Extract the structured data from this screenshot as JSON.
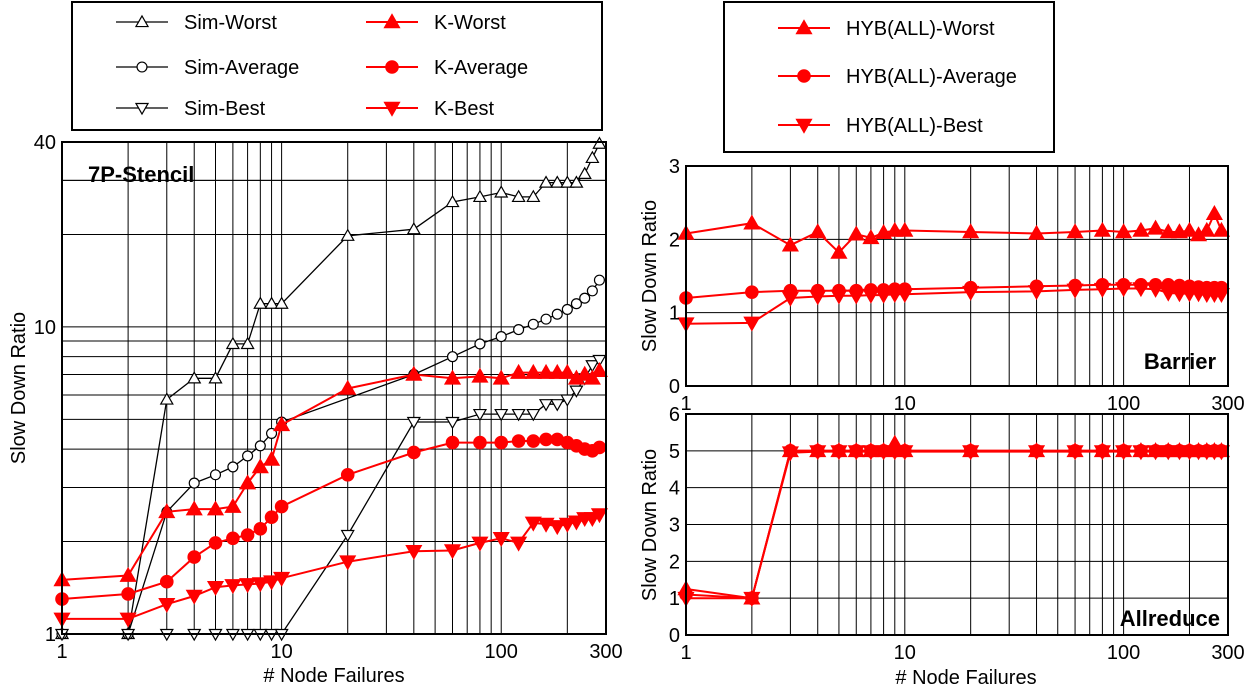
{
  "colors": {
    "sim": "#000000",
    "k": "#ff0000",
    "hyb": "#ff0000"
  },
  "chart_data": [
    {
      "type": "line",
      "annotation": "7P-Stencil",
      "xlabel": "# Node Failures",
      "ylabel": "Slow Down Ratio",
      "xscale": "log",
      "yscale": "log",
      "xlim": [
        1,
        300
      ],
      "ylim": [
        1,
        40
      ],
      "x_ticks": [
        {
          "v": 1,
          "t": "1"
        },
        {
          "v": 10,
          "t": "10"
        },
        {
          "v": 100,
          "t": "100"
        },
        {
          "v": 300,
          "t": "300"
        }
      ],
      "y_ticks": [
        {
          "v": 1,
          "t": "1"
        },
        {
          "v": 10,
          "t": "10"
        },
        {
          "v": 40,
          "t": "40"
        }
      ],
      "grid": true,
      "legend_position": "top",
      "series": [
        {
          "name": "Sim-Worst",
          "style": "sim",
          "marker": "tri-up",
          "filled": false,
          "x": [
            1,
            2,
            3,
            4,
            5,
            6,
            7,
            8,
            9,
            10,
            20,
            40,
            60,
            80,
            100,
            120,
            140,
            160,
            180,
            200,
            220,
            240,
            260,
            280
          ],
          "y": [
            1,
            1,
            5.8,
            6.8,
            6.8,
            8.8,
            8.8,
            11.9,
            11.9,
            11.9,
            19.8,
            20.8,
            25.5,
            26.5,
            27.4,
            26.5,
            26.5,
            29.5,
            29.5,
            29.5,
            29.5,
            31.5,
            35.5,
            39.5
          ]
        },
        {
          "name": "Sim-Average",
          "style": "sim",
          "marker": "circle",
          "filled": false,
          "x": [
            1,
            2,
            3,
            4,
            5,
            6,
            7,
            8,
            9,
            10,
            40,
            60,
            80,
            100,
            120,
            140,
            160,
            180,
            200,
            220,
            240,
            260,
            280
          ],
          "y": [
            1,
            1,
            2.5,
            3.1,
            3.3,
            3.5,
            3.8,
            4.1,
            4.5,
            4.9,
            7,
            8,
            8.8,
            9.3,
            9.8,
            10.2,
            10.6,
            11,
            11.4,
            11.9,
            12.4,
            13.1,
            14.2
          ]
        },
        {
          "name": "Sim-Best",
          "style": "sim",
          "marker": "tri-down",
          "filled": false,
          "x": [
            1,
            2,
            3,
            4,
            5,
            6,
            7,
            8,
            9,
            10,
            20,
            40,
            60,
            80,
            100,
            120,
            140,
            160,
            180,
            200,
            220,
            240,
            260,
            280
          ],
          "y": [
            1,
            1,
            1,
            1,
            1,
            1,
            1,
            1,
            1,
            1,
            2.1,
            4.9,
            4.9,
            5.2,
            5.2,
            5.2,
            5.2,
            5.6,
            5.6,
            5.8,
            6.2,
            6.8,
            7.5,
            7.8
          ]
        },
        {
          "name": "K-Worst",
          "style": "k",
          "marker": "tri-up",
          "filled": true,
          "x": [
            1,
            2,
            3,
            4,
            5,
            6,
            7,
            8,
            9,
            10,
            20,
            40,
            60,
            80,
            100,
            120,
            140,
            160,
            180,
            200,
            220,
            240,
            260,
            280
          ],
          "y": [
            1.5,
            1.55,
            2.5,
            2.55,
            2.55,
            2.6,
            3.1,
            3.5,
            3.7,
            4.8,
            6.3,
            7,
            6.8,
            6.9,
            6.8,
            7.1,
            7.1,
            7.1,
            7.1,
            7.1,
            6.8,
            7,
            6.8,
            7.2
          ]
        },
        {
          "name": "K-Average",
          "style": "k",
          "marker": "circle",
          "filled": true,
          "x": [
            1,
            2,
            3,
            4,
            5,
            6,
            7,
            8,
            9,
            10,
            20,
            40,
            60,
            80,
            100,
            120,
            140,
            160,
            180,
            200,
            220,
            240,
            260,
            280
          ],
          "y": [
            1.3,
            1.35,
            1.48,
            1.78,
            1.98,
            2.05,
            2.1,
            2.2,
            2.4,
            2.6,
            3.3,
            3.9,
            4.2,
            4.2,
            4.2,
            4.25,
            4.25,
            4.3,
            4.3,
            4.2,
            4.1,
            4.0,
            3.95,
            4.05
          ]
        },
        {
          "name": "K-Best",
          "style": "k",
          "marker": "tri-down",
          "filled": true,
          "x": [
            1,
            2,
            3,
            4,
            5,
            6,
            7,
            8,
            9,
            10,
            20,
            40,
            60,
            80,
            100,
            120,
            140,
            160,
            180,
            200,
            220,
            240,
            260,
            280
          ],
          "y": [
            1.12,
            1.12,
            1.25,
            1.33,
            1.42,
            1.44,
            1.45,
            1.46,
            1.48,
            1.52,
            1.72,
            1.86,
            1.87,
            1.98,
            2.05,
            1.98,
            2.3,
            2.28,
            2.24,
            2.28,
            2.32,
            2.38,
            2.38,
            2.45
          ]
        }
      ]
    },
    {
      "type": "line",
      "annotation": "Barrier",
      "ylabel": "Slow Down Ratio",
      "xscale": "log",
      "yscale": "linear",
      "xlim": [
        1,
        300
      ],
      "ylim": [
        0,
        3
      ],
      "x_ticks": [
        {
          "v": 1,
          "t": "1"
        },
        {
          "v": 10,
          "t": "10"
        },
        {
          "v": 100,
          "t": "100"
        },
        {
          "v": 300,
          "t": "300"
        }
      ],
      "y_ticks": [
        {
          "v": 0,
          "t": "0"
        },
        {
          "v": 1,
          "t": "1"
        },
        {
          "v": 2,
          "t": "2"
        },
        {
          "v": 3,
          "t": "3"
        }
      ],
      "grid": true,
      "legend_position": "top",
      "series": [
        {
          "name": "HYB(ALL)-Worst",
          "style": "hyb",
          "marker": "tri-up",
          "filled": true,
          "x": [
            1,
            2,
            3,
            4,
            5,
            6,
            7,
            8,
            9,
            10,
            20,
            40,
            60,
            80,
            100,
            120,
            140,
            160,
            180,
            200,
            220,
            240,
            260,
            280
          ],
          "y": [
            2.08,
            2.22,
            1.92,
            2.1,
            1.82,
            2.07,
            2.02,
            2.09,
            2.12,
            2.12,
            2.1,
            2.08,
            2.1,
            2.12,
            2.1,
            2.12,
            2.15,
            2.1,
            2.1,
            2.12,
            2.06,
            2.12,
            2.35,
            2.12
          ]
        },
        {
          "name": "HYB(ALL)-Average",
          "style": "hyb",
          "marker": "circle",
          "filled": true,
          "x": [
            1,
            2,
            3,
            4,
            5,
            6,
            7,
            8,
            9,
            10,
            20,
            40,
            60,
            80,
            100,
            120,
            140,
            160,
            180,
            200,
            220,
            240,
            260,
            280
          ],
          "y": [
            1.2,
            1.28,
            1.3,
            1.3,
            1.3,
            1.3,
            1.31,
            1.31,
            1.32,
            1.32,
            1.34,
            1.36,
            1.37,
            1.38,
            1.38,
            1.38,
            1.38,
            1.38,
            1.37,
            1.36,
            1.35,
            1.34,
            1.34,
            1.34
          ]
        },
        {
          "name": "HYB(ALL)-Best",
          "style": "hyb",
          "marker": "tri-down",
          "filled": true,
          "x": [
            1,
            2,
            3,
            4,
            5,
            6,
            7,
            8,
            9,
            10,
            20,
            40,
            60,
            80,
            100,
            120,
            140,
            160,
            180,
            200,
            220,
            240,
            260,
            280
          ],
          "y": [
            0.85,
            0.86,
            1.2,
            1.22,
            1.23,
            1.23,
            1.24,
            1.24,
            1.25,
            1.25,
            1.28,
            1.29,
            1.31,
            1.32,
            1.33,
            1.33,
            1.32,
            1.27,
            1.26,
            1.26,
            1.26,
            1.25,
            1.25,
            1.25
          ]
        }
      ]
    },
    {
      "type": "line",
      "annotation": "Allreduce",
      "xlabel": "# Node Failures",
      "ylabel": "Slow Down Ratio",
      "xscale": "log",
      "yscale": "linear",
      "xlim": [
        1,
        300
      ],
      "ylim": [
        0,
        6
      ],
      "x_ticks": [
        {
          "v": 1,
          "t": "1"
        },
        {
          "v": 10,
          "t": "10"
        },
        {
          "v": 100,
          "t": "100"
        },
        {
          "v": 300,
          "t": "300"
        }
      ],
      "y_ticks": [
        {
          "v": 0,
          "t": "0"
        },
        {
          "v": 1,
          "t": "1"
        },
        {
          "v": 2,
          "t": "2"
        },
        {
          "v": 3,
          "t": "3"
        },
        {
          "v": 4,
          "t": "4"
        },
        {
          "v": 5,
          "t": "5"
        },
        {
          "v": 6,
          "t": "6"
        }
      ],
      "grid": true,
      "legend_position": "top",
      "series": [
        {
          "name": "HYB(ALL)-Worst",
          "style": "hyb",
          "marker": "tri-up",
          "filled": true,
          "x": [
            1,
            2,
            3,
            4,
            5,
            6,
            7,
            8,
            9,
            10,
            20,
            40,
            60,
            80,
            100,
            120,
            140,
            160,
            180,
            200,
            220,
            240,
            260,
            280
          ],
          "y": [
            1.25,
            1.0,
            5.0,
            5.0,
            5.0,
            5.0,
            5.0,
            5.0,
            5.2,
            5.0,
            5.0,
            5.0,
            5.0,
            5.0,
            5.0,
            5.0,
            5.0,
            5.0,
            5.0,
            5.0,
            5.0,
            5.0,
            5.0,
            5.0
          ]
        },
        {
          "name": "HYB(ALL)-Average",
          "style": "hyb",
          "marker": "circle",
          "filled": true,
          "x": [
            1,
            2,
            3,
            4,
            5,
            6,
            7,
            8,
            9,
            10,
            20,
            40,
            60,
            80,
            100,
            120,
            140,
            160,
            180,
            200,
            220,
            240,
            260,
            280
          ],
          "y": [
            1.1,
            1.0,
            5.0,
            5.0,
            5.0,
            5.0,
            5.0,
            5.0,
            5.0,
            5.0,
            5.0,
            5.0,
            5.0,
            5.0,
            5.0,
            5.0,
            5.0,
            5.0,
            5.0,
            5.0,
            5.0,
            5.0,
            5.0,
            5.0
          ]
        },
        {
          "name": "HYB(ALL)-Best",
          "style": "hyb",
          "marker": "tri-down",
          "filled": true,
          "x": [
            1,
            2,
            3,
            4,
            5,
            6,
            7,
            8,
            9,
            10,
            20,
            40,
            60,
            80,
            100,
            120,
            140,
            160,
            180,
            200,
            220,
            240,
            260,
            280
          ],
          "y": [
            1.0,
            1.0,
            4.95,
            4.98,
            4.98,
            4.98,
            4.98,
            4.98,
            4.98,
            4.98,
            4.98,
            4.98,
            4.98,
            4.98,
            4.98,
            4.98,
            4.98,
            4.98,
            4.98,
            4.98,
            4.98,
            4.98,
            4.98,
            4.98
          ]
        }
      ]
    }
  ]
}
